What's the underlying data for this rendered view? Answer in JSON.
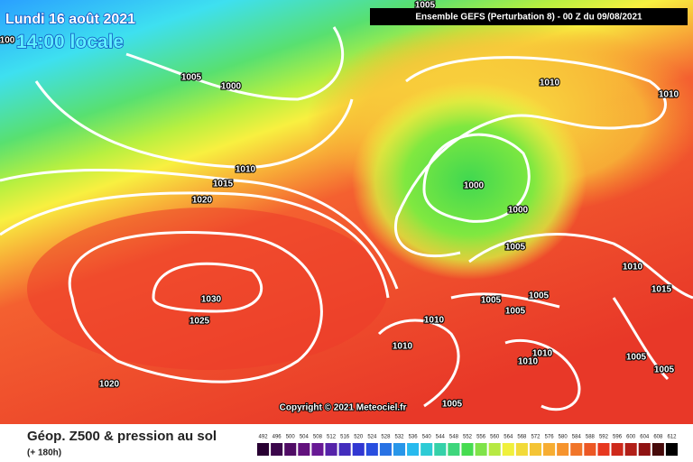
{
  "header": {
    "date": "Lundi 16 août 2021",
    "time": "14:00 locale",
    "run": "Ensemble GEFS  (Perturbation 8)  -  00 Z du 09/08/2021"
  },
  "isobar_labels": [
    "1005",
    "100",
    "1005",
    "1000",
    "1010",
    "1010",
    "1010",
    "1015",
    "1020",
    "1000",
    "1000",
    "1005",
    "1010",
    "1015",
    "1005",
    "1005",
    "1005",
    "1030",
    "1025",
    "1010",
    "1010",
    "1010",
    "1010",
    "1005",
    "1005",
    "1020",
    "1005"
  ],
  "copyright": "Copyright © 2021 Meteociel.fr",
  "legend": {
    "title": "Géop. Z500 & pression au sol",
    "subtitle": "(+ 180h)",
    "scale": [
      492,
      496,
      500,
      504,
      508,
      512,
      516,
      520,
      524,
      528,
      532,
      536,
      540,
      544,
      548,
      552,
      556,
      560,
      564,
      568,
      572,
      576,
      580,
      584,
      588,
      592,
      596,
      600,
      604,
      608,
      612
    ]
  }
}
